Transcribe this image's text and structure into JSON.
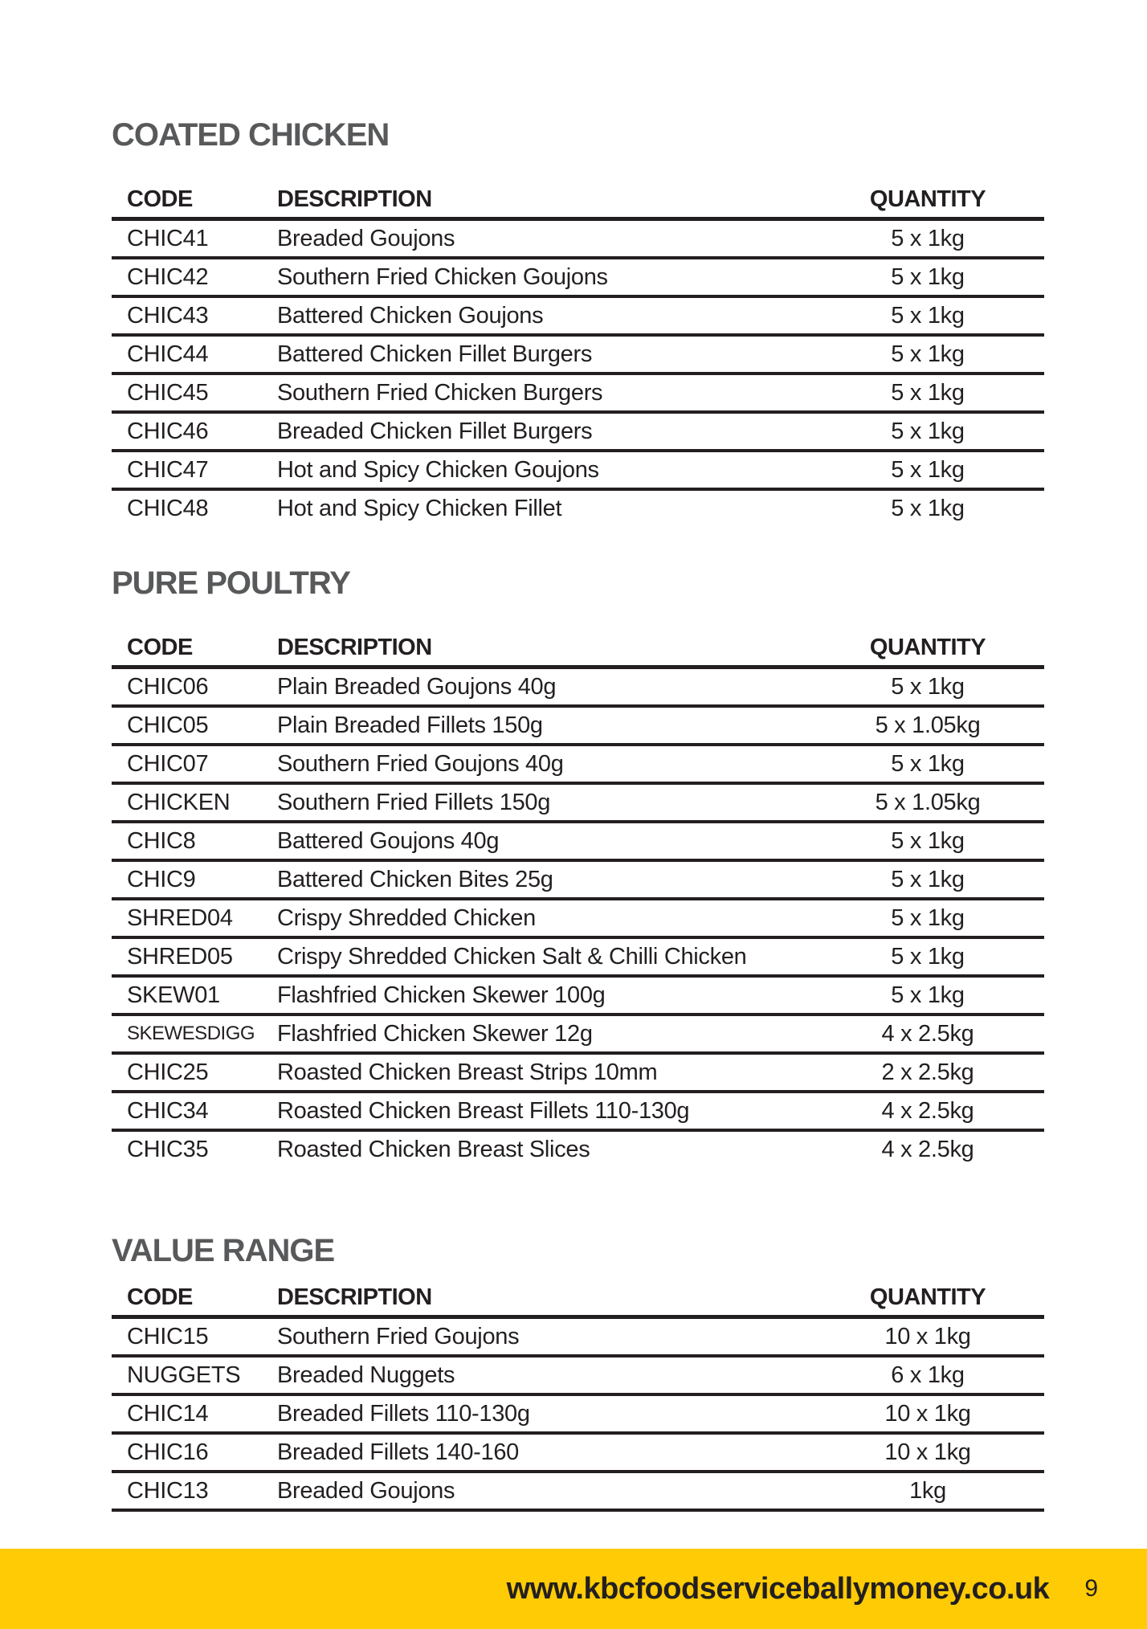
{
  "colors": {
    "accent_yellow": "#FFCB05",
    "heading_gray": "#58595B",
    "text_black": "#231F20"
  },
  "sections": [
    {
      "title": "COATED CHICKEN",
      "columns": [
        "CODE",
        "DESCRIPTION",
        "QUANTITY"
      ],
      "rows": [
        [
          "CHIC41",
          "Breaded Goujons",
          "5 x 1kg"
        ],
        [
          "CHIC42",
          "Southern Fried Chicken Goujons",
          "5 x 1kg"
        ],
        [
          "CHIC43",
          "Battered Chicken Goujons",
          "5 x 1kg"
        ],
        [
          "CHIC44",
          "Battered Chicken Fillet Burgers",
          "5 x 1kg"
        ],
        [
          "CHIC45",
          "Southern Fried Chicken Burgers",
          "5 x 1kg"
        ],
        [
          "CHIC46",
          "Breaded Chicken Fillet Burgers",
          "5 x 1kg"
        ],
        [
          "CHIC47",
          "Hot and Spicy Chicken Goujons",
          "5 x 1kg"
        ],
        [
          "CHIC48",
          "Hot and Spicy Chicken Fillet",
          "5 x 1kg"
        ]
      ]
    },
    {
      "title": "PURE POULTRY",
      "columns": [
        "CODE",
        "DESCRIPTION",
        "QUANTITY"
      ],
      "rows": [
        [
          "CHIC06",
          "Plain Breaded Goujons 40g",
          "5 x 1kg"
        ],
        [
          "CHIC05",
          "Plain Breaded Fillets 150g",
          "5 x 1.05kg"
        ],
        [
          "CHIC07",
          "Southern Fried Goujons 40g",
          "5 x 1kg"
        ],
        [
          "CHICKEN",
          "Southern Fried Fillets 150g",
          "5 x 1.05kg"
        ],
        [
          "CHIC8",
          "Battered Goujons 40g",
          "5 x 1kg"
        ],
        [
          "CHIC9",
          "Battered Chicken Bites 25g",
          "5 x 1kg"
        ],
        [
          "SHRED04",
          "Crispy Shredded Chicken",
          "5 x 1kg"
        ],
        [
          "SHRED05",
          "Crispy Shredded Chicken Salt & Chilli Chicken",
          "5 x 1kg"
        ],
        [
          "SKEW01",
          "Flashfried Chicken Skewer 100g",
          "5 x 1kg"
        ],
        [
          "SKEWESDIGG",
          "Flashfried Chicken Skewer 12g",
          "4 x 2.5kg"
        ],
        [
          "CHIC25",
          "Roasted Chicken Breast Strips 10mm",
          "2 x 2.5kg"
        ],
        [
          "CHIC34",
          "Roasted Chicken Breast Fillets 110-130g",
          "4 x 2.5kg"
        ],
        [
          "CHIC35",
          "Roasted Chicken Breast Slices",
          "4 x 2.5kg"
        ]
      ]
    },
    {
      "title": "VALUE RANGE",
      "columns": [
        "CODE",
        "DESCRIPTION",
        "QUANTITY"
      ],
      "rows": [
        [
          "CHIC15",
          "Southern Fried Goujons",
          "10 x 1kg"
        ],
        [
          "NUGGETS",
          "Breaded Nuggets",
          "6 x 1kg"
        ],
        [
          "CHIC14",
          "Breaded Fillets 110-130g",
          "10 x 1kg"
        ],
        [
          "CHIC16",
          "Breaded Fillets 140-160",
          "10 x 1kg"
        ],
        [
          "CHIC13",
          "Breaded Goujons",
          "1kg"
        ]
      ]
    }
  ],
  "footer": {
    "url": "www.kbcfoodserviceballymoney.co.uk",
    "page_number": "9"
  }
}
